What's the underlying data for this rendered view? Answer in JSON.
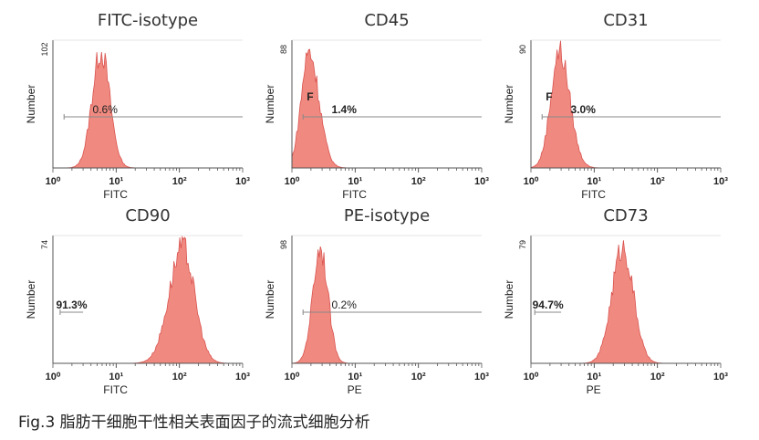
{
  "figure": {
    "caption": "Fig.3 脂肪干细胞干性相关表面因子的流式细胞分析"
  },
  "colors": {
    "histogram_fill": "#f08a80",
    "histogram_stroke": "#d9534f",
    "axis": "#555555"
  },
  "chart_data": [
    {
      "type": "area",
      "title": "FITC-isotype",
      "xlabel": "FITC",
      "ylabel": "Number",
      "xscale": "log",
      "xlim": [
        1,
        1000
      ],
      "xticks": [
        "10⁰",
        "10¹",
        "10²",
        "10³"
      ],
      "ymax_label": "102",
      "ylim": [
        0,
        102
      ],
      "gate": {
        "label": "0.6%",
        "range": [
          1.5,
          1000
        ],
        "prefix": ""
      },
      "peak": {
        "center": 0.76,
        "width": 0.14,
        "height": 100,
        "skew": 0
      }
    },
    {
      "type": "area",
      "title": "CD45",
      "xlabel": "FITC",
      "ylabel": "Number",
      "xscale": "log",
      "xlim": [
        1,
        1000
      ],
      "xticks": [
        "10⁰",
        "10¹",
        "10²",
        "10³"
      ],
      "ymax_label": "88",
      "ylim": [
        0,
        88
      ],
      "gate": {
        "label": "1.4%",
        "range": [
          1.5,
          1000
        ],
        "prefix": "F"
      },
      "peak": {
        "center": 0.27,
        "width": 0.14,
        "height": 86,
        "skew": 0.4
      }
    },
    {
      "type": "area",
      "title": "CD31",
      "xlabel": "FITC",
      "ylabel": "Number",
      "xscale": "log",
      "xlim": [
        1,
        1000
      ],
      "xticks": [
        "10⁰",
        "10¹",
        "10²",
        "10³"
      ],
      "ymax_label": "90",
      "ylim": [
        0,
        90
      ],
      "gate": {
        "label": "3.0%",
        "range": [
          1.5,
          1000
        ],
        "prefix": "F"
      },
      "peak": {
        "center": 0.45,
        "width": 0.15,
        "height": 88,
        "skew": 0.3
      }
    },
    {
      "type": "area",
      "title": "CD90",
      "xlabel": "FITC",
      "ylabel": "Number",
      "xscale": "log",
      "xlim": [
        1,
        1000
      ],
      "xticks": [
        "10⁰",
        "10¹",
        "10²",
        "10³"
      ],
      "ymax_label": "74",
      "ylim": [
        0,
        74
      ],
      "gate": {
        "label": "91.3%",
        "range": [
          1.3,
          3.0
        ],
        "prefix": ""
      },
      "peak": {
        "center": 2.05,
        "width": 0.2,
        "height": 72,
        "skew": -0.2
      }
    },
    {
      "type": "area",
      "title": "PE-isotype",
      "xlabel": "PE",
      "ylabel": "Number",
      "xscale": "log",
      "xlim": [
        1,
        1000
      ],
      "xticks": [
        "10⁰",
        "10¹",
        "10²",
        "10³"
      ],
      "ymax_label": "98",
      "ylim": [
        0,
        98
      ],
      "gate": {
        "label": "0.2%",
        "range": [
          1.5,
          1000
        ],
        "prefix": ""
      },
      "peak": {
        "center": 0.45,
        "width": 0.12,
        "height": 96,
        "skew": 0
      }
    },
    {
      "type": "area",
      "title": "CD73",
      "xlabel": "PE",
      "ylabel": "Number",
      "xscale": "log",
      "xlim": [
        1,
        1000
      ],
      "xticks": [
        "10⁰",
        "10¹",
        "10²",
        "10³"
      ],
      "ymax_label": "79",
      "ylim": [
        0,
        79
      ],
      "gate": {
        "label": "94.7%",
        "range": [
          1.15,
          3.0
        ],
        "prefix": ""
      },
      "peak": {
        "center": 1.45,
        "width": 0.17,
        "height": 77,
        "skew": 0
      }
    }
  ]
}
